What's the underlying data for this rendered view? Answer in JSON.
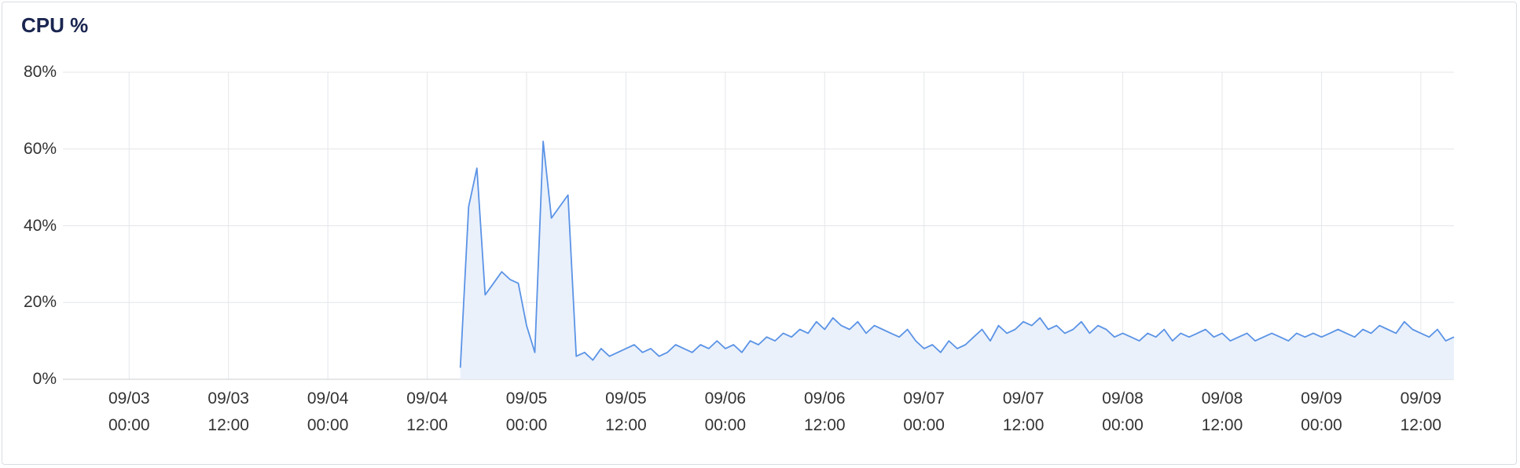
{
  "chart_data": {
    "type": "area",
    "title": "CPU %",
    "x": [
      "09/04 16:00",
      "09/04 17:00",
      "09/04 18:00",
      "09/04 19:00",
      "09/04 20:00",
      "09/04 21:00",
      "09/04 22:00",
      "09/04 23:00",
      "09/05 00:00",
      "09/05 01:00",
      "09/05 02:00",
      "09/05 03:00",
      "09/05 04:00",
      "09/05 05:00",
      "09/05 06:00",
      "09/05 07:00",
      "09/05 08:00",
      "09/05 09:00",
      "09/05 10:00",
      "09/05 11:00",
      "09/05 12:00",
      "09/05 13:00",
      "09/05 14:00",
      "09/05 15:00",
      "09/05 16:00",
      "09/05 17:00",
      "09/05 18:00",
      "09/05 19:00",
      "09/05 20:00",
      "09/05 21:00",
      "09/05 22:00",
      "09/05 23:00",
      "09/06 00:00",
      "09/06 01:00",
      "09/06 02:00",
      "09/06 03:00",
      "09/06 04:00",
      "09/06 05:00",
      "09/06 06:00",
      "09/06 07:00",
      "09/06 08:00",
      "09/06 09:00",
      "09/06 10:00",
      "09/06 11:00",
      "09/06 12:00",
      "09/06 13:00",
      "09/06 14:00",
      "09/06 15:00",
      "09/06 16:00",
      "09/06 17:00",
      "09/06 18:00",
      "09/06 19:00",
      "09/06 20:00",
      "09/06 21:00",
      "09/06 22:00",
      "09/06 23:00",
      "09/07 00:00",
      "09/07 01:00",
      "09/07 02:00",
      "09/07 03:00",
      "09/07 04:00",
      "09/07 05:00",
      "09/07 06:00",
      "09/07 07:00",
      "09/07 08:00",
      "09/07 09:00",
      "09/07 10:00",
      "09/07 11:00",
      "09/07 12:00",
      "09/07 13:00",
      "09/07 14:00",
      "09/07 15:00",
      "09/07 16:00",
      "09/07 17:00",
      "09/07 18:00",
      "09/07 19:00",
      "09/07 20:00",
      "09/07 21:00",
      "09/07 22:00",
      "09/07 23:00",
      "09/08 00:00",
      "09/08 01:00",
      "09/08 02:00",
      "09/08 03:00",
      "09/08 04:00",
      "09/08 05:00",
      "09/08 06:00",
      "09/08 07:00",
      "09/08 08:00",
      "09/08 09:00",
      "09/08 10:00",
      "09/08 11:00",
      "09/08 12:00",
      "09/08 13:00",
      "09/08 14:00",
      "09/08 15:00",
      "09/08 16:00",
      "09/08 17:00",
      "09/08 18:00",
      "09/08 19:00",
      "09/08 20:00",
      "09/08 21:00",
      "09/08 22:00",
      "09/08 23:00",
      "09/09 00:00",
      "09/09 01:00",
      "09/09 02:00",
      "09/09 03:00",
      "09/09 04:00",
      "09/09 05:00",
      "09/09 06:00",
      "09/09 07:00",
      "09/09 08:00",
      "09/09 09:00",
      "09/09 10:00",
      "09/09 11:00",
      "09/09 12:00",
      "09/09 13:00",
      "09/09 14:00",
      "09/09 15:00",
      "09/09 16:00"
    ],
    "series": [
      {
        "color": "#5b93e6",
        "fill": "#eaf1fb",
        "values": [
          3,
          45,
          55,
          22,
          25,
          28,
          26,
          25,
          14,
          7,
          62,
          42,
          45,
          48,
          6,
          7,
          5,
          8,
          6,
          7,
          8,
          9,
          7,
          8,
          6,
          7,
          9,
          8,
          7,
          9,
          8,
          10,
          8,
          9,
          7,
          10,
          9,
          11,
          10,
          12,
          11,
          13,
          12,
          15,
          13,
          16,
          14,
          13,
          15,
          12,
          14,
          13,
          12,
          11,
          13,
          10,
          8,
          9,
          7,
          10,
          8,
          9,
          11,
          13,
          10,
          14,
          12,
          13,
          15,
          14,
          16,
          13,
          14,
          12,
          13,
          15,
          12,
          14,
          13,
          11,
          12,
          11,
          10,
          12,
          11,
          13,
          10,
          12,
          11,
          12,
          13,
          11,
          12,
          10,
          11,
          12,
          10,
          11,
          12,
          11,
          10,
          12,
          11,
          12,
          11,
          12,
          13,
          12,
          11,
          13,
          12,
          14,
          13,
          12,
          15,
          13,
          12,
          11,
          13,
          10,
          11
        ]
      }
    ],
    "xlim": [
      "09/02 16:00",
      "09/09 16:00"
    ],
    "xticks": [
      "09/03 00:00",
      "09/03 12:00",
      "09/04 00:00",
      "09/04 12:00",
      "09/05 00:00",
      "09/05 12:00",
      "09/06 00:00",
      "09/06 12:00",
      "09/07 00:00",
      "09/07 12:00",
      "09/08 00:00",
      "09/08 12:00",
      "09/09 00:00",
      "09/09 12:00"
    ],
    "ylim": [
      0,
      80
    ],
    "yticks": [
      {
        "value": 0,
        "label": "0%"
      },
      {
        "value": 20,
        "label": "20%"
      },
      {
        "value": 40,
        "label": "40%"
      },
      {
        "value": 60,
        "label": "60%"
      },
      {
        "value": 80,
        "label": "80%"
      }
    ],
    "grid": true
  }
}
